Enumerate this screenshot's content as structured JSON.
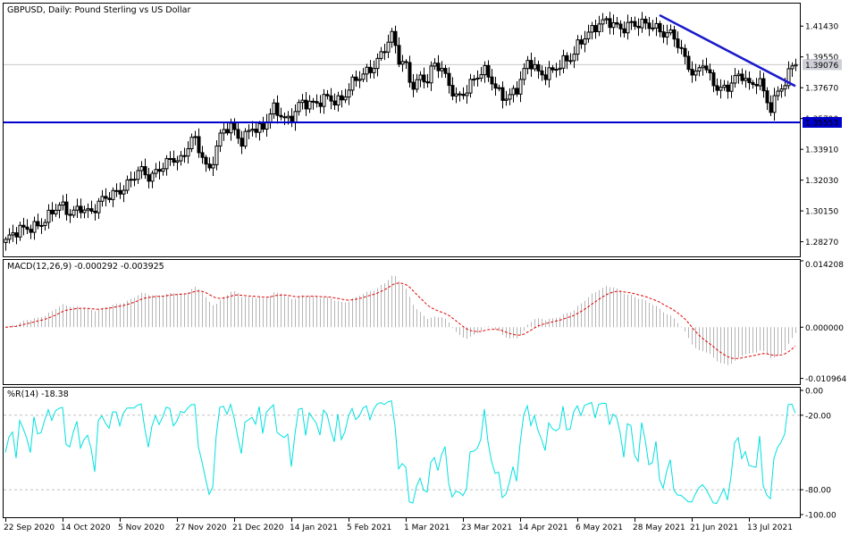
{
  "chart_data": [
    {
      "type": "candlestick",
      "title": "GBPUSD, Daily:  Pound Sterling vs US Dollar",
      "y_ticks": [
        "1.41430",
        "1.39550",
        "1.37670",
        "1.35790",
        "1.33910",
        "1.32030",
        "1.30150",
        "1.28270"
      ],
      "ylim": [
        1.2743,
        1.4275
      ],
      "current_price": "1.39076",
      "horizontal_line": "1.35553",
      "x_labels": [
        "22 Sep 2020",
        "14 Oct 2020",
        "5 Nov 2020",
        "27 Nov 2020",
        "21 Dec 2020",
        "14 Jan 2021",
        "5 Feb 2021",
        "1 Mar 2021",
        "23 Mar 2021",
        "14 Apr 2021",
        "6 May 2021",
        "28 May 2021",
        "21 Jun 2021",
        "13 Jul 2021"
      ],
      "trendline": {
        "from": {
          "date": "2021-05-27",
          "price": 1.421
        },
        "to": {
          "date": "2021-07-23",
          "price": 1.3777
        }
      },
      "colors": {
        "candles": "#000000",
        "horizontal_line": "#0000cc",
        "trendline": "#1a1acc",
        "current_price_bg": "#cfcfd8"
      }
    },
    {
      "type": "bar",
      "title": "MACD(12,26,9) -0.000292 -0.003925",
      "y_ticks": [
        "0.014208",
        "0.000000",
        "-0.010964"
      ],
      "ylim": [
        -0.012,
        0.0142
      ],
      "colors": {
        "histogram": "#b5b5b5",
        "signal": "#e00000"
      }
    },
    {
      "type": "line",
      "title": "%R(14) -18.38",
      "y_ticks": [
        "0.00",
        "-20.00",
        "-80.00",
        "-100.00"
      ],
      "ylim": [
        -100,
        0
      ],
      "levels": [
        -20,
        -80
      ],
      "colors": {
        "line": "#00e0e0"
      }
    }
  ]
}
